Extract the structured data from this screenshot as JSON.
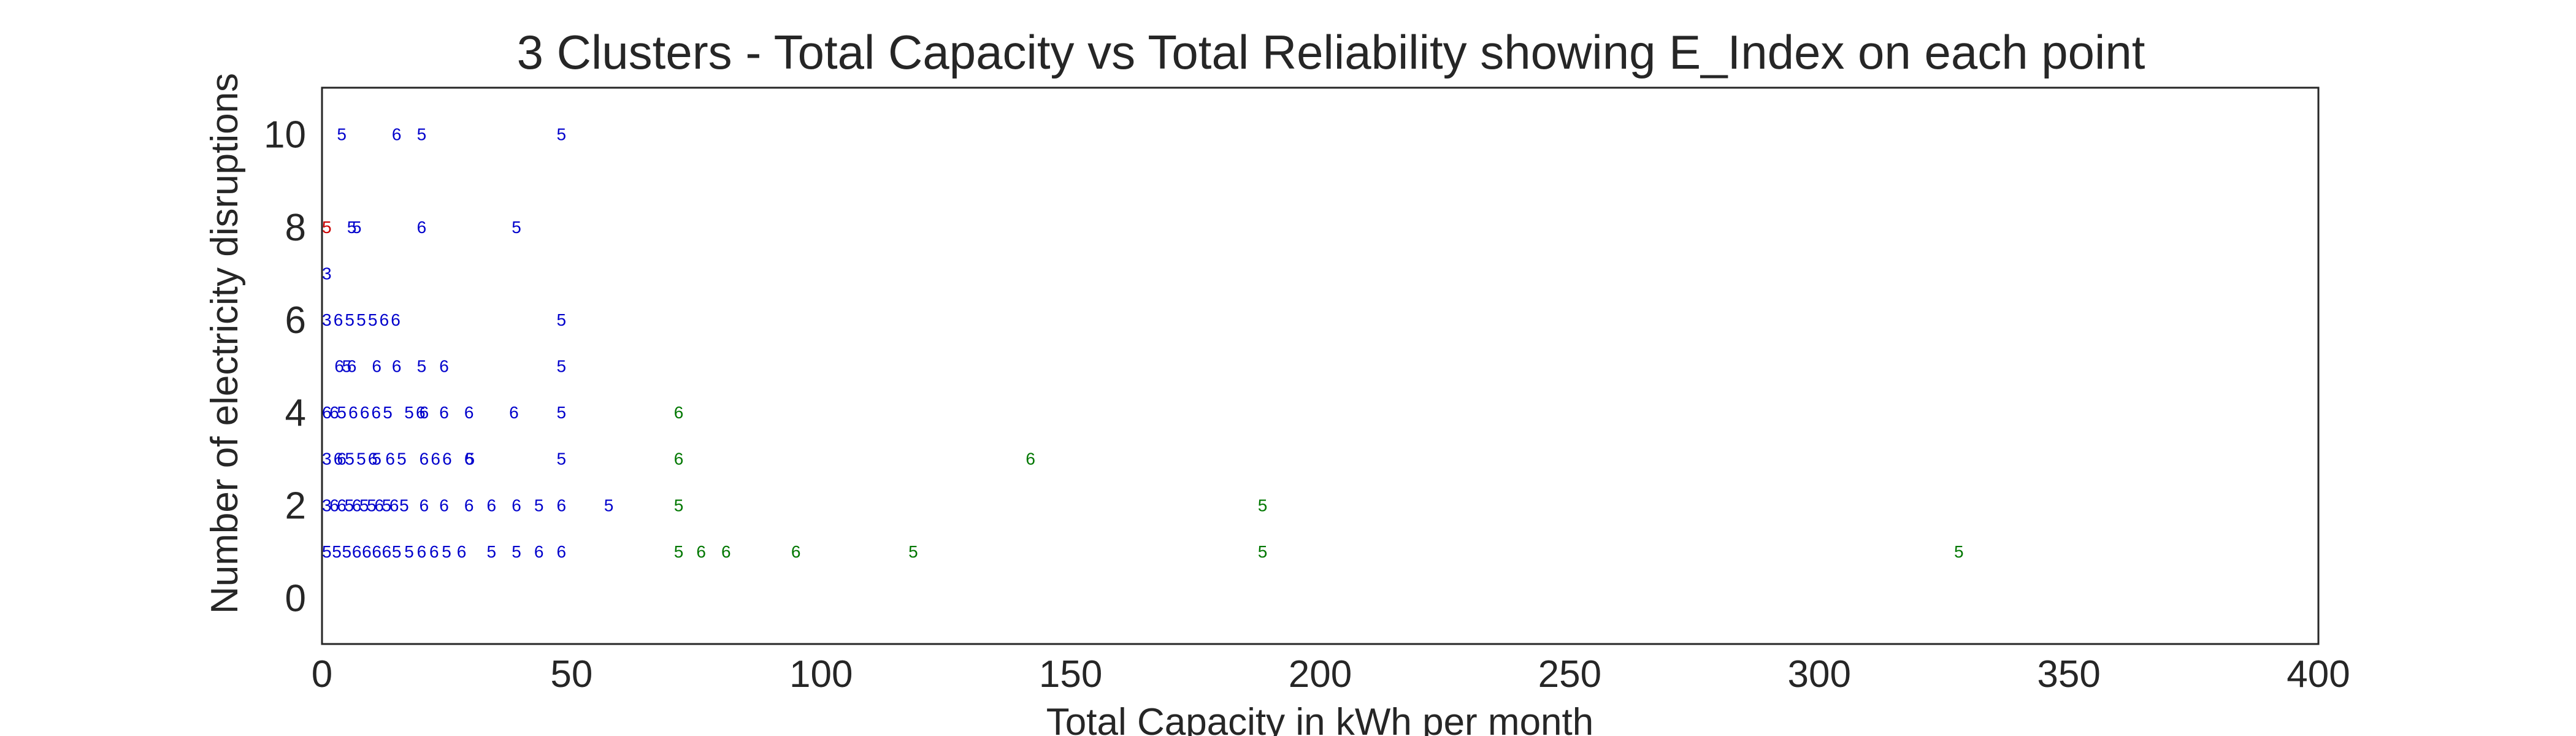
{
  "chart_data": {
    "type": "scatter",
    "title": "3 Clusters - Total Capacity  vs Total Reliability showing E_Index on each point",
    "xlabel": "Total Capacity in kWh per month",
    "ylabel": "Number of electricity disruptions",
    "xlim": [
      0,
      400
    ],
    "ylim": [
      -1,
      11
    ],
    "xticks": [
      0,
      50,
      100,
      150,
      200,
      250,
      300,
      350,
      400
    ],
    "yticks": [
      0,
      2,
      4,
      6,
      8,
      10
    ],
    "grid": false,
    "point_label_field": "E_Index",
    "clusters": [
      {
        "color": "#cc0000"
      },
      {
        "color": "#0000cc"
      },
      {
        "color": "#007700"
      }
    ],
    "points": [
      {
        "x": 0,
        "y": 8,
        "label": "5",
        "cluster": 0
      },
      {
        "x": 3,
        "y": 10,
        "label": "5",
        "cluster": 1
      },
      {
        "x": 14,
        "y": 10,
        "label": "6",
        "cluster": 1
      },
      {
        "x": 19,
        "y": 10,
        "label": "5",
        "cluster": 1
      },
      {
        "x": 47,
        "y": 10,
        "label": "5",
        "cluster": 1
      },
      {
        "x": 5,
        "y": 8,
        "label": "5",
        "cluster": 1
      },
      {
        "x": 6,
        "y": 8,
        "label": "5",
        "cluster": 1
      },
      {
        "x": 19,
        "y": 8,
        "label": "6",
        "cluster": 1
      },
      {
        "x": 38,
        "y": 8,
        "label": "5",
        "cluster": 1
      },
      {
        "x": 0,
        "y": 7,
        "label": "3",
        "cluster": 1
      },
      {
        "x": 0,
        "y": 6,
        "label": "3",
        "cluster": 1
      },
      {
        "x": 2.3,
        "y": 6,
        "label": "6",
        "cluster": 1
      },
      {
        "x": 4.6,
        "y": 6,
        "label": "5",
        "cluster": 1
      },
      {
        "x": 6.9,
        "y": 6,
        "label": "5",
        "cluster": 1
      },
      {
        "x": 9.2,
        "y": 6,
        "label": "5",
        "cluster": 1
      },
      {
        "x": 11.5,
        "y": 6,
        "label": "6",
        "cluster": 1
      },
      {
        "x": 13.8,
        "y": 6,
        "label": "6",
        "cluster": 1
      },
      {
        "x": 47,
        "y": 6,
        "label": "5",
        "cluster": 1
      },
      {
        "x": 2.5,
        "y": 5,
        "label": "6",
        "cluster": 1
      },
      {
        "x": 4,
        "y": 5,
        "label": "5",
        "cluster": 1
      },
      {
        "x": 5,
        "y": 5,
        "label": "6",
        "cluster": 1
      },
      {
        "x": 10,
        "y": 5,
        "label": "6",
        "cluster": 1
      },
      {
        "x": 14,
        "y": 5,
        "label": "6",
        "cluster": 1
      },
      {
        "x": 19,
        "y": 5,
        "label": "5",
        "cluster": 1
      },
      {
        "x": 23.5,
        "y": 5,
        "label": "6",
        "cluster": 1
      },
      {
        "x": 47,
        "y": 5,
        "label": "5",
        "cluster": 1
      },
      {
        "x": 0,
        "y": 4,
        "label": "6",
        "cluster": 1
      },
      {
        "x": 1.5,
        "y": 4,
        "label": "6",
        "cluster": 1
      },
      {
        "x": 3,
        "y": 4,
        "label": "5",
        "cluster": 1
      },
      {
        "x": 5.3,
        "y": 4,
        "label": "6",
        "cluster": 1
      },
      {
        "x": 7.6,
        "y": 4,
        "label": "6",
        "cluster": 1
      },
      {
        "x": 9.9,
        "y": 4,
        "label": "6",
        "cluster": 1
      },
      {
        "x": 12.2,
        "y": 4,
        "label": "5",
        "cluster": 1
      },
      {
        "x": 16.5,
        "y": 4,
        "label": "5",
        "cluster": 1
      },
      {
        "x": 18.8,
        "y": 4,
        "label": "6",
        "cluster": 1
      },
      {
        "x": 19.5,
        "y": 4,
        "label": "6",
        "cluster": 1
      },
      {
        "x": 23.5,
        "y": 4,
        "label": "6",
        "cluster": 1
      },
      {
        "x": 28.5,
        "y": 4,
        "label": "6",
        "cluster": 1
      },
      {
        "x": 37.5,
        "y": 4,
        "label": "6",
        "cluster": 1
      },
      {
        "x": 47,
        "y": 4,
        "label": "5",
        "cluster": 1
      },
      {
        "x": 0,
        "y": 3,
        "label": "3",
        "cluster": 1
      },
      {
        "x": 2.3,
        "y": 3,
        "label": "6",
        "cluster": 1
      },
      {
        "x": 3,
        "y": 3,
        "label": "6",
        "cluster": 1
      },
      {
        "x": 4.6,
        "y": 3,
        "label": "5",
        "cluster": 1
      },
      {
        "x": 6.9,
        "y": 3,
        "label": "5",
        "cluster": 1
      },
      {
        "x": 9.2,
        "y": 3,
        "label": "6",
        "cluster": 1
      },
      {
        "x": 10,
        "y": 3,
        "label": "5",
        "cluster": 1
      },
      {
        "x": 12.7,
        "y": 3,
        "label": "6",
        "cluster": 1
      },
      {
        "x": 15,
        "y": 3,
        "label": "5",
        "cluster": 1
      },
      {
        "x": 19.5,
        "y": 3,
        "label": "6",
        "cluster": 1
      },
      {
        "x": 21.8,
        "y": 3,
        "label": "6",
        "cluster": 1
      },
      {
        "x": 24.1,
        "y": 3,
        "label": "6",
        "cluster": 1
      },
      {
        "x": 28.5,
        "y": 3,
        "label": "6",
        "cluster": 1
      },
      {
        "x": 28.7,
        "y": 3,
        "label": "5",
        "cluster": 1
      },
      {
        "x": 47,
        "y": 3,
        "label": "5",
        "cluster": 1
      },
      {
        "x": 0,
        "y": 2,
        "label": "3",
        "cluster": 1
      },
      {
        "x": 1.5,
        "y": 2,
        "label": "6",
        "cluster": 1
      },
      {
        "x": 3,
        "y": 2,
        "label": "6",
        "cluster": 1
      },
      {
        "x": 4.5,
        "y": 2,
        "label": "5",
        "cluster": 1
      },
      {
        "x": 6,
        "y": 2,
        "label": "6",
        "cluster": 1
      },
      {
        "x": 7.5,
        "y": 2,
        "label": "5",
        "cluster": 1
      },
      {
        "x": 9,
        "y": 2,
        "label": "5",
        "cluster": 1
      },
      {
        "x": 10.5,
        "y": 2,
        "label": "6",
        "cluster": 1
      },
      {
        "x": 12,
        "y": 2,
        "label": "5",
        "cluster": 1
      },
      {
        "x": 13.5,
        "y": 2,
        "label": "6",
        "cluster": 1
      },
      {
        "x": 15.5,
        "y": 2,
        "label": "5",
        "cluster": 1
      },
      {
        "x": 19.5,
        "y": 2,
        "label": "6",
        "cluster": 1
      },
      {
        "x": 23.5,
        "y": 2,
        "label": "6",
        "cluster": 1
      },
      {
        "x": 28.5,
        "y": 2,
        "label": "6",
        "cluster": 1
      },
      {
        "x": 33,
        "y": 2,
        "label": "6",
        "cluster": 1
      },
      {
        "x": 38,
        "y": 2,
        "label": "6",
        "cluster": 1
      },
      {
        "x": 42.5,
        "y": 2,
        "label": "5",
        "cluster": 1
      },
      {
        "x": 47,
        "y": 2,
        "label": "6",
        "cluster": 1
      },
      {
        "x": 56.5,
        "y": 2,
        "label": "5",
        "cluster": 1
      },
      {
        "x": 0,
        "y": 1,
        "label": "5",
        "cluster": 1
      },
      {
        "x": 2,
        "y": 1,
        "label": "5",
        "cluster": 1
      },
      {
        "x": 4,
        "y": 1,
        "label": "5",
        "cluster": 1
      },
      {
        "x": 6,
        "y": 1,
        "label": "6",
        "cluster": 1
      },
      {
        "x": 8,
        "y": 1,
        "label": "6",
        "cluster": 1
      },
      {
        "x": 10,
        "y": 1,
        "label": "6",
        "cluster": 1
      },
      {
        "x": 12,
        "y": 1,
        "label": "6",
        "cluster": 1
      },
      {
        "x": 14,
        "y": 1,
        "label": "5",
        "cluster": 1
      },
      {
        "x": 16.5,
        "y": 1,
        "label": "5",
        "cluster": 1
      },
      {
        "x": 19,
        "y": 1,
        "label": "6",
        "cluster": 1
      },
      {
        "x": 21.5,
        "y": 1,
        "label": "6",
        "cluster": 1
      },
      {
        "x": 24,
        "y": 1,
        "label": "5",
        "cluster": 1
      },
      {
        "x": 27,
        "y": 1,
        "label": "6",
        "cluster": 1
      },
      {
        "x": 33,
        "y": 1,
        "label": "5",
        "cluster": 1
      },
      {
        "x": 38,
        "y": 1,
        "label": "5",
        "cluster": 1
      },
      {
        "x": 42.5,
        "y": 1,
        "label": "6",
        "cluster": 1
      },
      {
        "x": 47,
        "y": 1,
        "label": "6",
        "cluster": 1
      },
      {
        "x": 70.5,
        "y": 4,
        "label": "6",
        "cluster": 2
      },
      {
        "x": 70.5,
        "y": 3,
        "label": "6",
        "cluster": 2
      },
      {
        "x": 141,
        "y": 3,
        "label": "6",
        "cluster": 2
      },
      {
        "x": 70.5,
        "y": 2,
        "label": "5",
        "cluster": 2
      },
      {
        "x": 187.5,
        "y": 2,
        "label": "5",
        "cluster": 2
      },
      {
        "x": 70.5,
        "y": 1,
        "label": "5",
        "cluster": 2
      },
      {
        "x": 75,
        "y": 1,
        "label": "6",
        "cluster": 2
      },
      {
        "x": 80,
        "y": 1,
        "label": "6",
        "cluster": 2
      },
      {
        "x": 94,
        "y": 1,
        "label": "6",
        "cluster": 2
      },
      {
        "x": 117.5,
        "y": 1,
        "label": "5",
        "cluster": 2
      },
      {
        "x": 187.5,
        "y": 1,
        "label": "5",
        "cluster": 2
      },
      {
        "x": 327,
        "y": 1,
        "label": "5",
        "cluster": 2
      }
    ]
  }
}
